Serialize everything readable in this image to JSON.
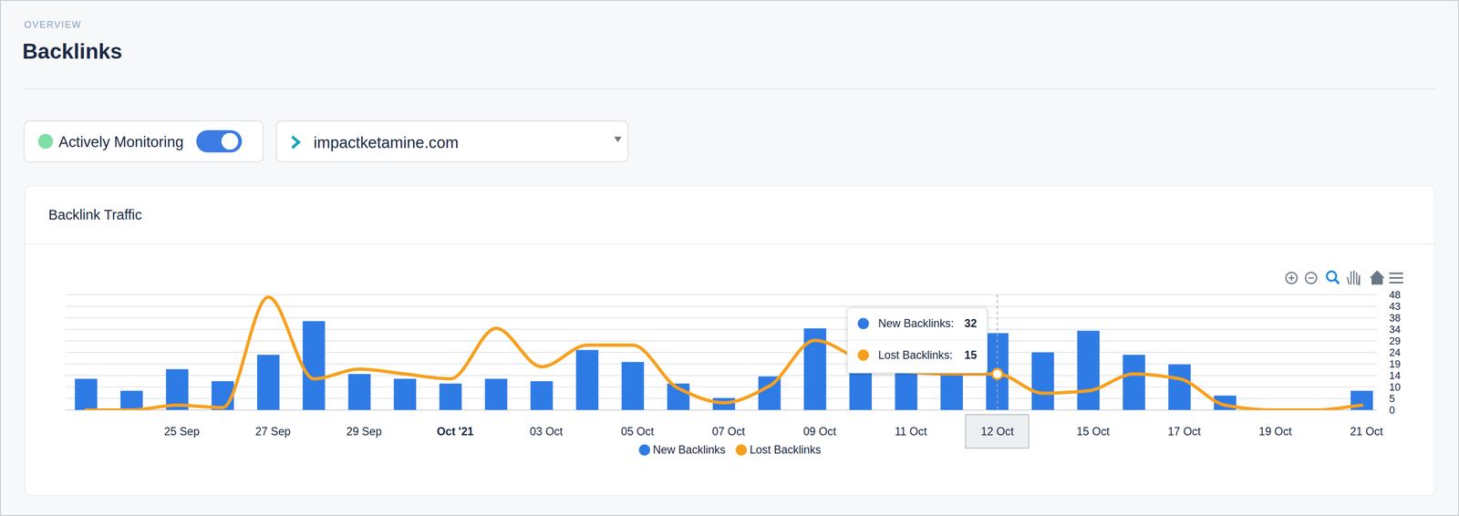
{
  "page": {
    "section": "OVERVIEW",
    "title": "Backlinks",
    "monitor_label": "Actively Monitoring",
    "domain": "impactketamine.com"
  },
  "chart_data": {
    "type": "bar",
    "title": "Backlink Traffic",
    "categories": [
      null,
      null,
      "25 Sep",
      null,
      "27 Sep",
      null,
      "29 Sep",
      null,
      "Oct '21",
      null,
      "03 Oct",
      null,
      "05 Oct",
      null,
      "07 Oct",
      null,
      "09 Oct",
      null,
      "11 Oct",
      null,
      "12 Oct",
      null,
      "15 Oct",
      null,
      "17 Oct",
      null,
      "19 Oct",
      null,
      "21 Oct"
    ],
    "series": [
      {
        "name": "New Backlinks",
        "type": "bar",
        "color": "#2f7be5",
        "values": [
          13,
          8,
          17,
          12,
          23,
          37,
          15,
          13,
          11,
          13,
          12,
          25,
          20,
          11,
          5,
          14,
          34,
          17,
          17,
          16,
          32,
          24,
          33,
          23,
          19,
          6,
          0,
          0,
          8
        ]
      },
      {
        "name": "Lost Backlinks",
        "type": "line",
        "color": "#f7a01e",
        "line_style": "solid",
        "values": [
          0,
          0,
          2,
          1,
          47,
          13,
          17,
          15,
          13,
          34,
          18,
          27,
          27,
          9,
          3,
          10,
          29,
          21,
          16,
          15,
          15,
          7,
          8,
          15,
          13,
          2,
          0,
          0,
          2
        ]
      }
    ],
    "ylim": [
      0,
      48
    ],
    "yticks": [
      0,
      {
        "value": 4.8,
        "label": "5"
      },
      {
        "value": 9.6,
        "label": "10"
      },
      {
        "value": 14.4,
        "label": "14"
      },
      {
        "value": 19.2,
        "label": "19"
      },
      24,
      {
        "value": 28.8,
        "label": "29"
      },
      {
        "value": 33.6,
        "label": "34"
      },
      {
        "value": 38.4,
        "label": "38"
      },
      {
        "value": 43.2,
        "label": "43"
      },
      48
    ],
    "grid": true,
    "legend": "bottom",
    "tooltip": {
      "category": "12 Oct",
      "items": [
        {
          "label": "New Backlinks:",
          "value": 32
        },
        {
          "label": "Lost Backlinks:",
          "value": 15
        }
      ]
    }
  }
}
